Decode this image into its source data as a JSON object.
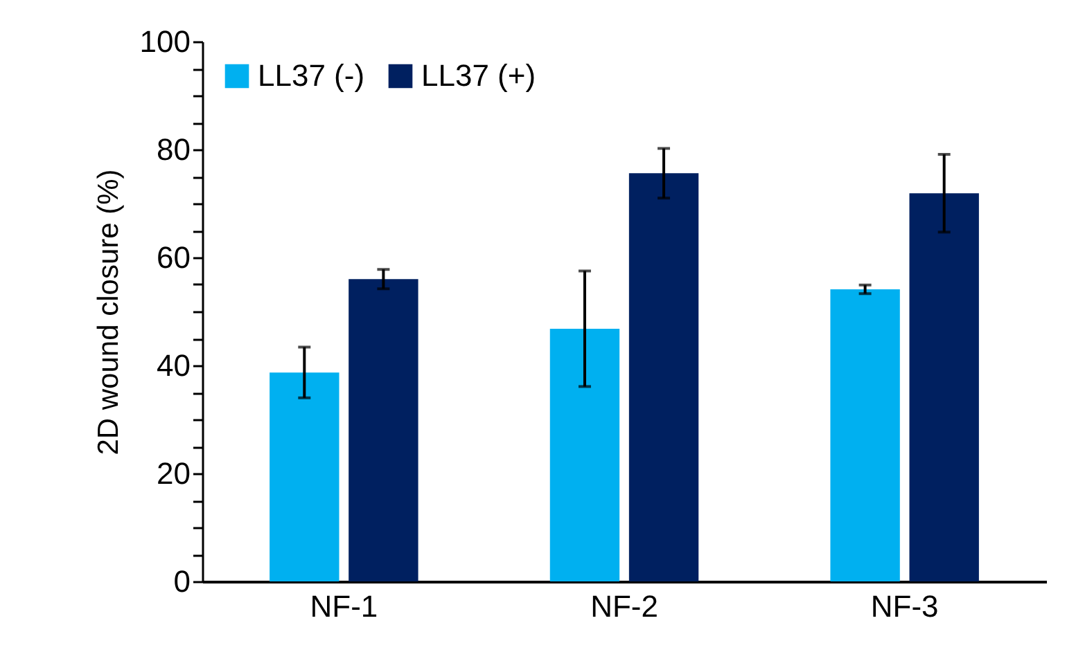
{
  "chart_data": {
    "type": "bar",
    "ylabel": "2D wound closure (%)",
    "categories": [
      "NF-1",
      "NF-2",
      "NF-3"
    ],
    "series": [
      {
        "name": "LL37 (-)",
        "color": "#00b0f0",
        "values": [
          38.7,
          46.8,
          54.1
        ],
        "errors": [
          4.7,
          10.7,
          0.8
        ]
      },
      {
        "name": "LL37 (+)",
        "color": "#002060",
        "values": [
          56.0,
          75.6,
          71.9
        ],
        "errors": [
          1.8,
          4.6,
          7.2
        ]
      }
    ],
    "ylim": [
      0,
      100
    ],
    "yticks": [
      0,
      {
        "value": 5,
        "label": null
      },
      {
        "value": 10,
        "label": null
      },
      {
        "value": 15,
        "label": null
      },
      20,
      {
        "value": 25,
        "label": null
      },
      {
        "value": 30,
        "label": null
      },
      {
        "value": 35,
        "label": null
      },
      40,
      {
        "value": 45,
        "label": null
      },
      {
        "value": 50,
        "label": null
      },
      {
        "value": 55,
        "label": null
      },
      60,
      {
        "value": 65,
        "label": null
      },
      {
        "value": 70,
        "label": null
      },
      {
        "value": 75,
        "label": null
      },
      80,
      {
        "value": 85,
        "label": null
      },
      {
        "value": 90,
        "label": null
      },
      {
        "value": 95,
        "label": null
      },
      100
    ],
    "grid": false,
    "legend": "top left"
  }
}
